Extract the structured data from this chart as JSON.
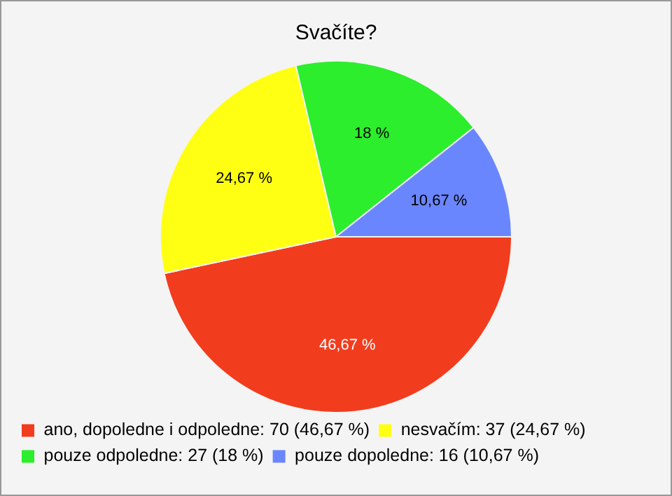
{
  "chart_data": {
    "type": "pie",
    "title": "Svačíte?",
    "categories": [
      "ano, dopoledne i odpoledne: 70 (46,67 %)",
      "nesvačím: 37 (24,67 %)",
      "pouze odpoledne: 27 (18 %)",
      "pouze dopoledne: 16 (10,67 %)"
    ],
    "values": [
      46.67,
      24.67,
      18,
      10.67
    ],
    "value_labels": [
      "46,67 %",
      "24,67 %",
      "18 %",
      "10,67 %"
    ],
    "colors": [
      "#f23c1e",
      "#ffff14",
      "#2cee2c",
      "#6a86ff"
    ],
    "legend": "bottom left"
  }
}
